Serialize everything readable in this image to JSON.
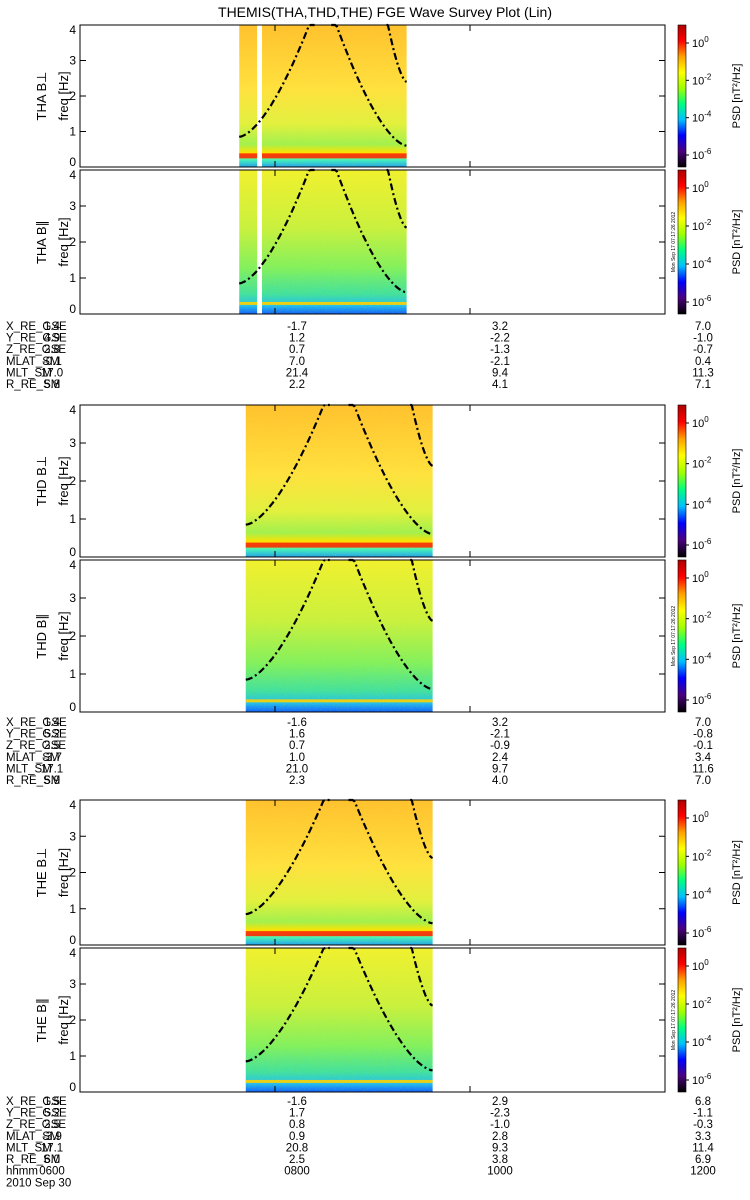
{
  "title": "THEMIS(THA,THD,THE) FGE Wave Survey Plot (Lin)",
  "footer": {
    "time_label": "hhmm",
    "date_label": "2010 Sep 30",
    "time_ticks": [
      "0600",
      "0800",
      "1000",
      "1200"
    ]
  },
  "colorbar": {
    "label": "PSD [nT^2/Hz]",
    "tick_labels": [
      "10^0",
      "10^-2",
      "10^-4",
      "10^-6"
    ],
    "stamp": "Mon Sep 17 07:17:26 2012",
    "colors": [
      "#000000",
      "#4b007f",
      "#0000ff",
      "#00c0ff",
      "#00ff80",
      "#a0ff00",
      "#ffff00",
      "#ffa000",
      "#ff0000",
      "#b00000"
    ]
  },
  "chart_data": [
    {
      "type": "heatmap",
      "probe": "THA",
      "ylabel": "THA B⊥",
      "ylabel2": "freq [Hz]",
      "x_range": [
        "0600",
        "1200"
      ],
      "ylim": [
        0,
        4
      ],
      "yticks": [
        0,
        1,
        2,
        3,
        4
      ],
      "data_intervals": [
        [
          "0738",
          "0749"
        ],
        [
          "0752",
          "0921"
        ]
      ]
    },
    {
      "type": "heatmap",
      "probe": "THA",
      "ylabel": "THA B∥",
      "ylabel2": "freq [Hz]",
      "x_range": [
        "0600",
        "1200"
      ],
      "ylim": [
        0,
        4
      ],
      "yticks": [
        0,
        1,
        2,
        3,
        4
      ],
      "data_intervals": [
        [
          "0738",
          "0749"
        ],
        [
          "0752",
          "0921"
        ]
      ]
    },
    {
      "type": "heatmap",
      "probe": "THD",
      "ylabel": "THD B⊥",
      "ylabel2": "freq [Hz]",
      "x_range": [
        "0600",
        "1200"
      ],
      "ylim": [
        0,
        4
      ],
      "yticks": [
        0,
        1,
        2,
        3,
        4
      ],
      "data_intervals": [
        [
          "0742",
          "0937"
        ]
      ]
    },
    {
      "type": "heatmap",
      "probe": "THD",
      "ylabel": "THD B∥",
      "ylabel2": "freq [Hz]",
      "x_range": [
        "0600",
        "1200"
      ],
      "ylim": [
        0,
        4
      ],
      "yticks": [
        0,
        1,
        2,
        3,
        4
      ],
      "data_intervals": [
        [
          "0742",
          "0937"
        ]
      ]
    },
    {
      "type": "heatmap",
      "probe": "THE",
      "ylabel": "THE B⊥",
      "ylabel2": "freq [Hz]",
      "x_range": [
        "0600",
        "1200"
      ],
      "ylim": [
        0,
        4
      ],
      "yticks": [
        0,
        1,
        2,
        3,
        4
      ],
      "data_intervals": [
        [
          "0742",
          "0937"
        ]
      ]
    },
    {
      "type": "heatmap",
      "probe": "THE",
      "ylabel": "THE B∥",
      "ylabel2": "freq [Hz]",
      "x_range": [
        "0600",
        "1200"
      ],
      "ylim": [
        0,
        4
      ],
      "yticks": [
        0,
        1,
        2,
        3,
        4
      ],
      "data_intervals": [
        [
          "0742",
          "0937"
        ]
      ]
    }
  ],
  "ephemeris": [
    {
      "probe": "THA",
      "rows": [
        {
          "label": "X_RE_GSE",
          "values": [
            "1.4",
            "-1.7",
            "3.2",
            "7.0"
          ]
        },
        {
          "label": "Y_RE_GSE",
          "values": [
            "4.9",
            "1.2",
            "-2.2",
            "-1.0"
          ]
        },
        {
          "label": "Z_RE_GSE",
          "values": [
            "2.8",
            "0.7",
            "-1.3",
            "-0.7"
          ]
        },
        {
          "label": "MLAT_SM",
          "values": [
            "-0.1",
            "7.0",
            "-2.1",
            "0.4"
          ]
        },
        {
          "label": "MLT_SM",
          "values": [
            "17.0",
            "21.4",
            "9.4",
            "11.3"
          ]
        },
        {
          "label": "R_RE_SM",
          "values": [
            "5.8",
            "2.2",
            "4.1",
            "7.1"
          ]
        }
      ]
    },
    {
      "probe": "THD",
      "rows": [
        {
          "label": "X_RE_GSE",
          "values": [
            "1.4",
            "-1.6",
            "3.2",
            "7.0"
          ]
        },
        {
          "label": "Y_RE_GSE",
          "values": [
            "5.2",
            "1.6",
            "-2.1",
            "-0.8"
          ]
        },
        {
          "label": "Z_RE_GSE",
          "values": [
            "2.5",
            "0.7",
            "-0.9",
            "-0.1"
          ]
        },
        {
          "label": "MLAT_SM",
          "values": [
            "-3.7",
            "1.0",
            "2.4",
            "3.4"
          ]
        },
        {
          "label": "MLT_SM",
          "values": [
            "17.1",
            "21.0",
            "9.7",
            "11.6"
          ]
        },
        {
          "label": "R_RE_SM",
          "values": [
            "5.9",
            "2.3",
            "4.0",
            "7.0"
          ]
        }
      ]
    },
    {
      "probe": "THE",
      "rows": [
        {
          "label": "X_RE_GSE",
          "values": [
            "1.5",
            "-1.6",
            "2.9",
            "6.8"
          ]
        },
        {
          "label": "Y_RE_GSE",
          "values": [
            "5.2",
            "1.7",
            "-2.3",
            "-1.1"
          ]
        },
        {
          "label": "Z_RE_GSE",
          "values": [
            "2.5",
            "0.8",
            "-1.0",
            "-0.3"
          ]
        },
        {
          "label": "MLAT_SM",
          "values": [
            "-3.9",
            "0.9",
            "2.8",
            "3.3"
          ]
        },
        {
          "label": "MLT_SM",
          "values": [
            "17.1",
            "20.8",
            "9.3",
            "11.4"
          ]
        },
        {
          "label": "R_RE_SM",
          "values": [
            "6.0",
            "2.5",
            "3.8",
            "6.9"
          ]
        }
      ]
    }
  ]
}
